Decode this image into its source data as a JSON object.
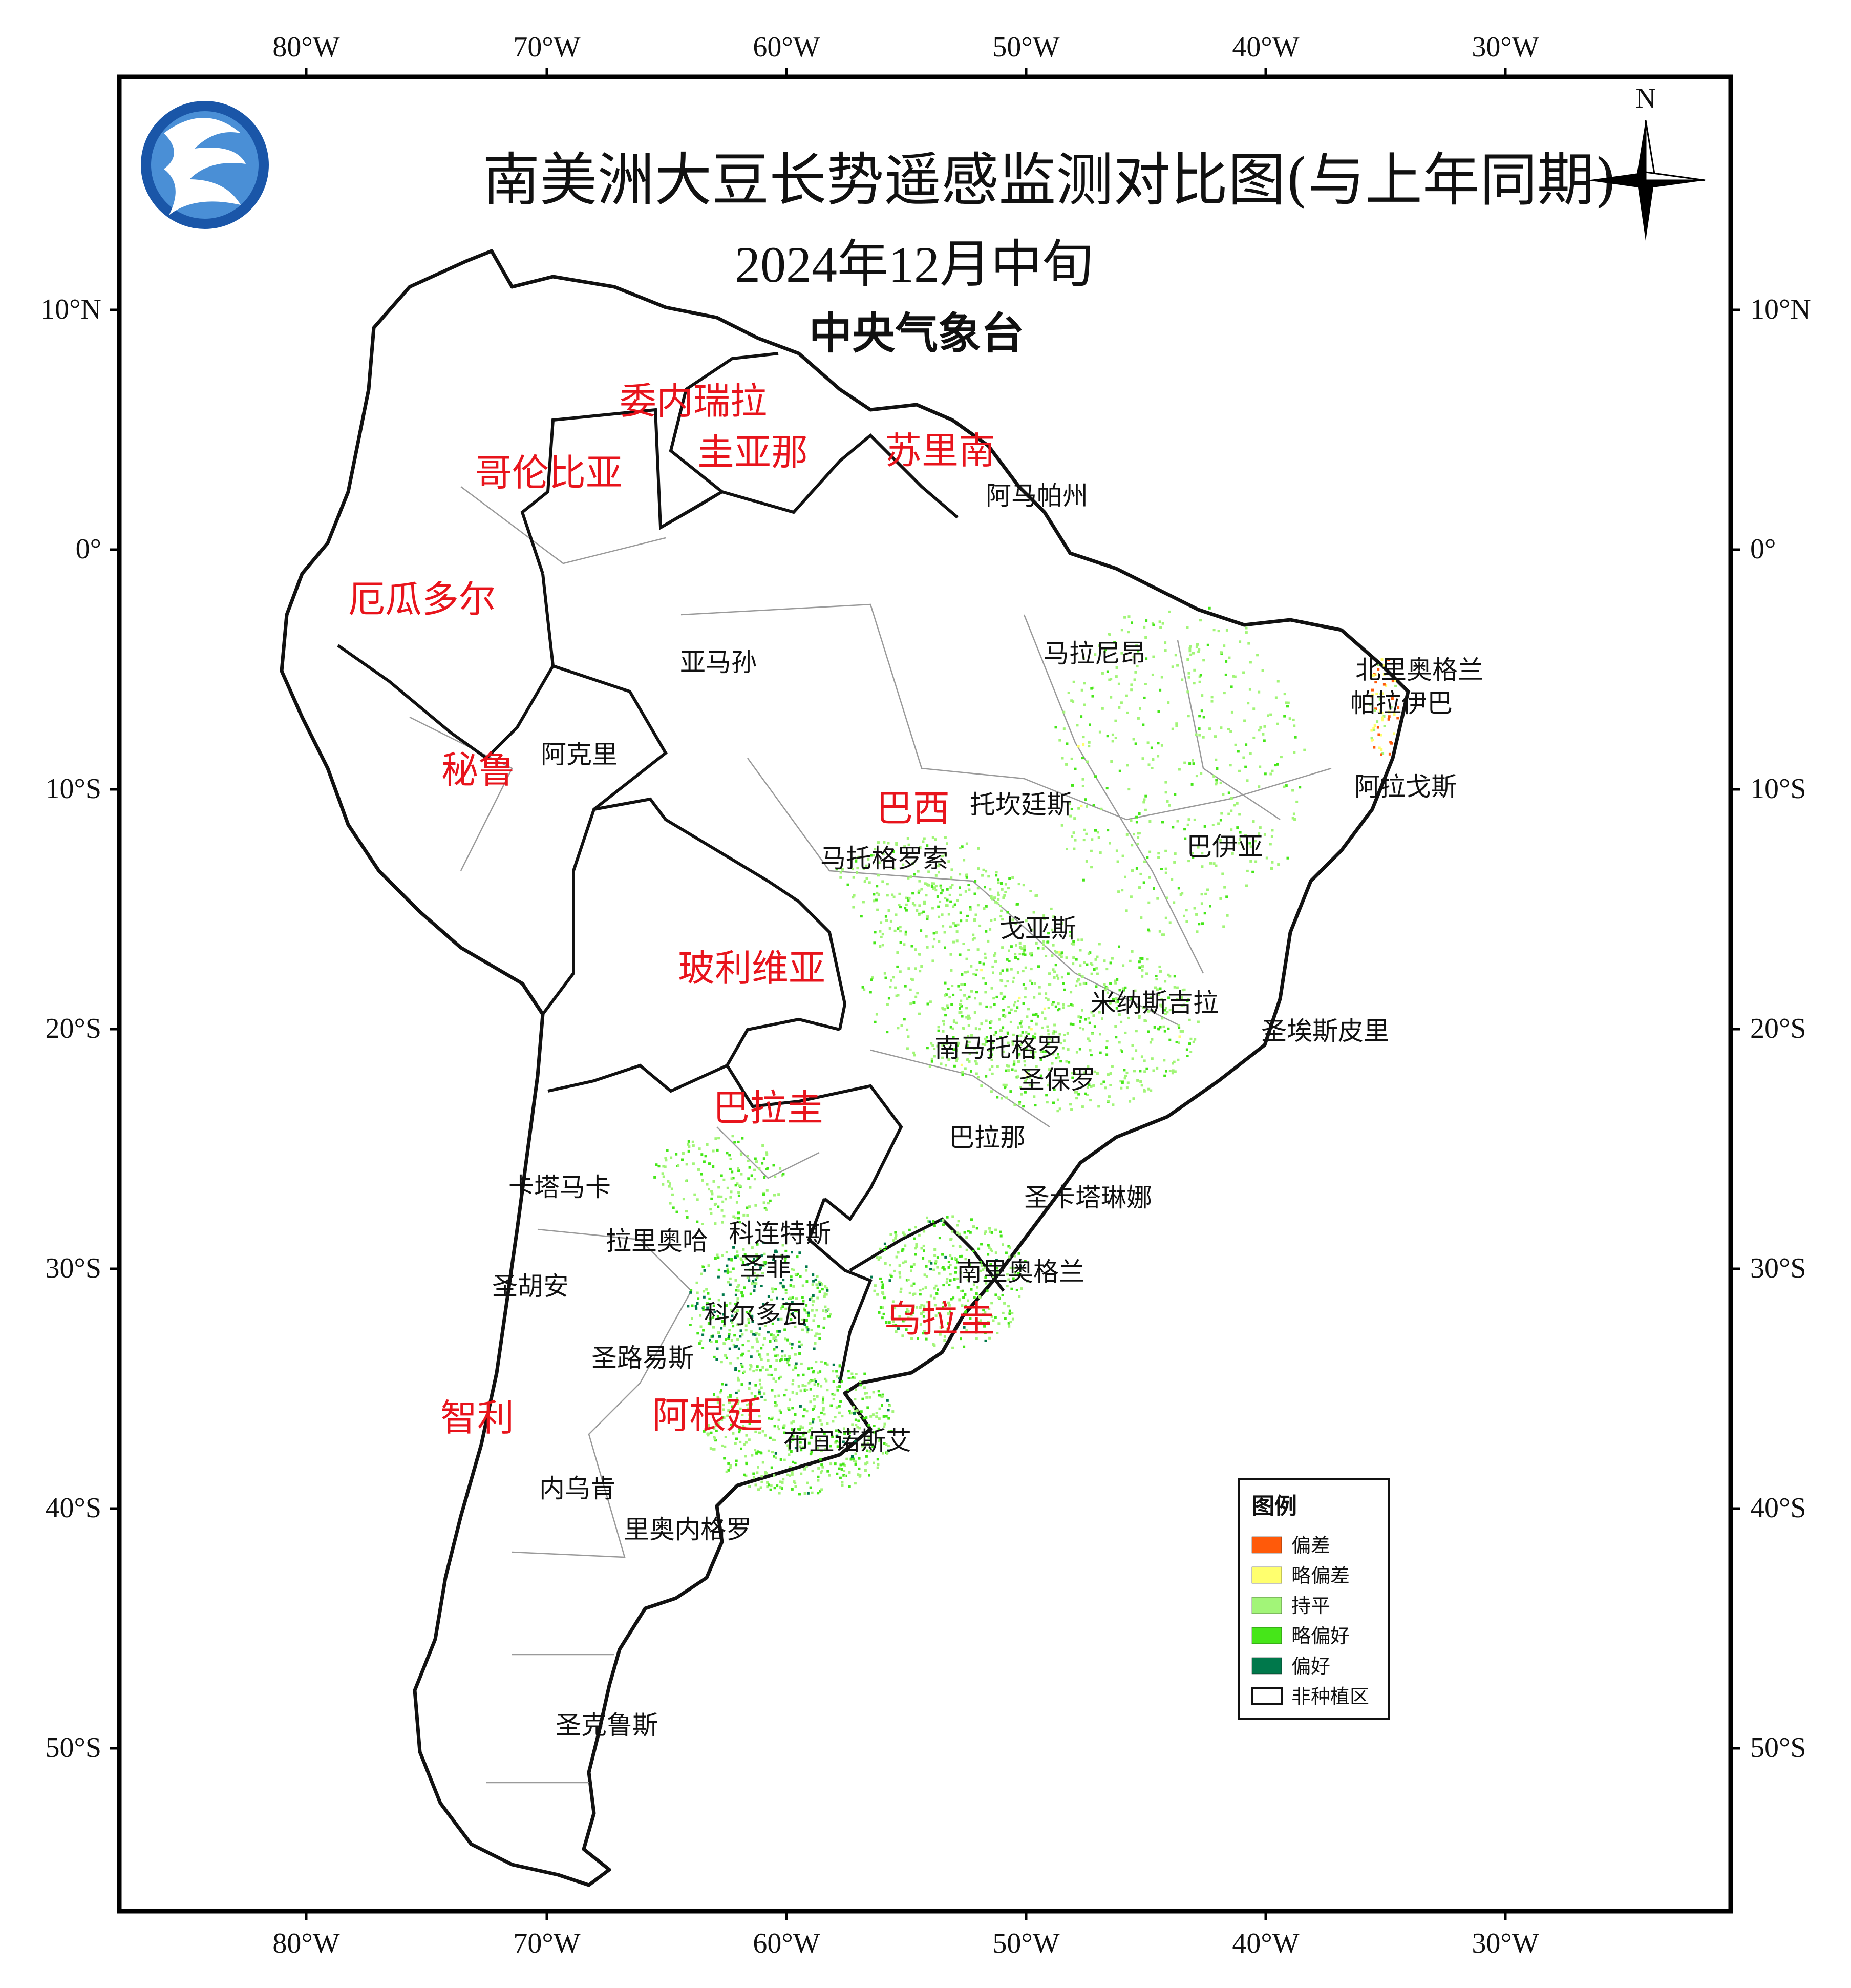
{
  "title": "南美洲大豆长势遥感监测对比图(与上年同期)",
  "subtitle": "2024年12月中旬",
  "agency": "中央气象台",
  "north_label": "N",
  "axes": {
    "lon_labels": [
      "80°W",
      "70°W",
      "60°W",
      "50°W",
      "40°W",
      "30°W"
    ],
    "lat_labels": [
      "10°N",
      "0°",
      "10°S",
      "20°S",
      "30°S",
      "40°S",
      "50°S"
    ]
  },
  "countries": [
    {
      "name": "委内瑞拉"
    },
    {
      "name": "圭亚那"
    },
    {
      "name": "苏里南"
    },
    {
      "name": "哥伦比亚"
    },
    {
      "name": "厄瓜多尔"
    },
    {
      "name": "秘鲁"
    },
    {
      "name": "巴西"
    },
    {
      "name": "玻利维亚"
    },
    {
      "name": "巴拉圭"
    },
    {
      "name": "乌拉圭"
    },
    {
      "name": "阿根廷"
    },
    {
      "name": "智利"
    }
  ],
  "regions": [
    {
      "name": "阿马帕州"
    },
    {
      "name": "亚马孙"
    },
    {
      "name": "马拉尼昂"
    },
    {
      "name": "北里奥格兰"
    },
    {
      "name": "帕拉伊巴"
    },
    {
      "name": "阿克里"
    },
    {
      "name": "阿拉戈斯"
    },
    {
      "name": "托坎廷斯"
    },
    {
      "name": "巴伊亚"
    },
    {
      "name": "马托格罗索"
    },
    {
      "name": "戈亚斯"
    },
    {
      "name": "米纳斯吉拉"
    },
    {
      "name": "圣埃斯皮里"
    },
    {
      "name": "南马托格罗"
    },
    {
      "name": "圣保罗"
    },
    {
      "name": "巴拉那"
    },
    {
      "name": "圣卡塔琳娜"
    },
    {
      "name": "卡塔马卡"
    },
    {
      "name": "拉里奥哈"
    },
    {
      "name": "科连特斯"
    },
    {
      "name": "圣菲"
    },
    {
      "name": "南里奥格兰"
    },
    {
      "name": "圣胡安"
    },
    {
      "name": "科尔多瓦"
    },
    {
      "name": "圣路易斯"
    },
    {
      "name": "布宜诺斯艾"
    },
    {
      "name": "内乌肯"
    },
    {
      "name": "里奥内格罗"
    },
    {
      "name": "圣克鲁斯"
    }
  ],
  "legend": {
    "title": "图例",
    "items": [
      {
        "label": "偏差",
        "color": "#ff5a0a"
      },
      {
        "label": "略偏差",
        "color": "#ffff6e"
      },
      {
        "label": "持平",
        "color": "#a2f578"
      },
      {
        "label": "略偏好",
        "color": "#46e619"
      },
      {
        "label": "偏好",
        "color": "#00784b"
      },
      {
        "label": "非种植区",
        "color": "#ffffff"
      }
    ]
  },
  "logo_icon": "cma-logo-icon",
  "compass_icon": "north-arrow-icon"
}
